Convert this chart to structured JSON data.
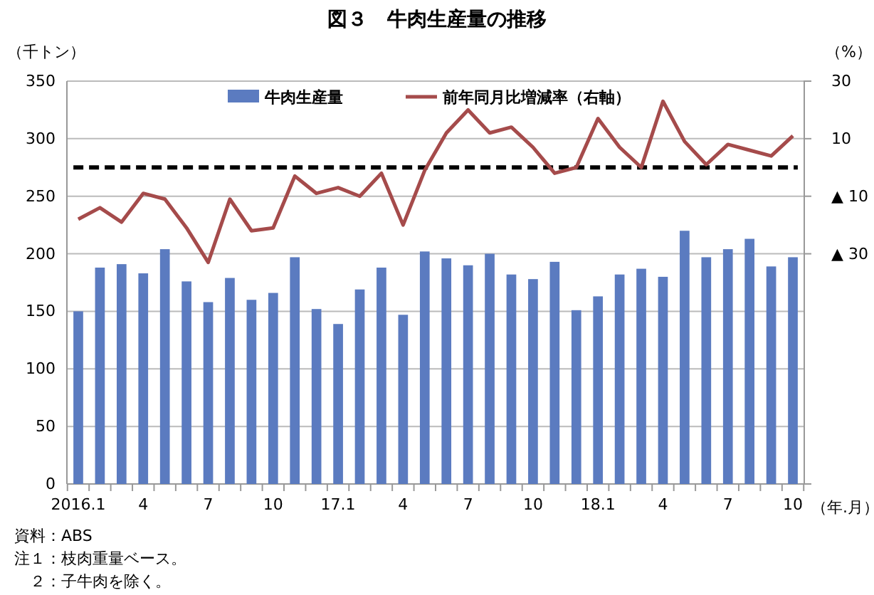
{
  "chart_data": {
    "type": "bar",
    "title": "図３　牛肉生産量の推移",
    "ylabel": "（千トン）",
    "y2label": "（%）",
    "xlabel": "（年.月）",
    "categories": [
      "2016.1",
      null,
      null,
      "4",
      null,
      null,
      "7",
      null,
      null,
      "10",
      null,
      null,
      "17.1",
      null,
      null,
      "4",
      null,
      null,
      "7",
      null,
      null,
      "10",
      null,
      null,
      "18.1",
      null,
      null,
      "4",
      null,
      null,
      "7",
      null,
      null,
      "10"
    ],
    "series": [
      {
        "name": "牛肉生産量",
        "color": "#5b7bc0",
        "values": [
          150,
          188,
          191,
          183,
          204,
          176,
          158,
          179,
          160,
          166,
          197,
          152,
          139,
          169,
          188,
          147,
          202,
          196,
          190,
          200,
          182,
          178,
          193,
          151,
          163,
          182,
          187,
          180,
          220,
          197,
          204,
          213,
          189,
          197
        ]
      },
      {
        "name": "前年同月比増減率（右軸）",
        "type": "line",
        "axis": "y2",
        "color": "#a54b4b",
        "values": [
          -18,
          -14,
          -19,
          -9,
          -11,
          -21,
          -33,
          -11,
          -22,
          -21,
          -3,
          -9,
          -7,
          -10,
          -2,
          -20,
          -1,
          12,
          20,
          12,
          14,
          7,
          -2,
          0,
          17,
          7,
          0,
          23,
          9,
          1,
          8,
          6,
          4,
          11
        ]
      }
    ],
    "ylim": [
      0,
      350
    ],
    "yticks": [
      0,
      50,
      100,
      150,
      200,
      250,
      300,
      350
    ],
    "y2lim": [
      -110,
      30
    ],
    "y2ticks": [
      30,
      10,
      {
        "value": -10,
        "label": "▲ 10"
      },
      {
        "value": -30,
        "label": "▲ 30"
      }
    ],
    "ref_lines": [
      {
        "axis": "y2",
        "value": 0,
        "label": null,
        "color": "#000000",
        "line_style": "dashed"
      }
    ],
    "grid": "y",
    "legend": "top",
    "annotations": [
      "資料：ABS",
      "注１：枝肉重量ベース。",
      "　２：子牛肉を除く。"
    ]
  }
}
